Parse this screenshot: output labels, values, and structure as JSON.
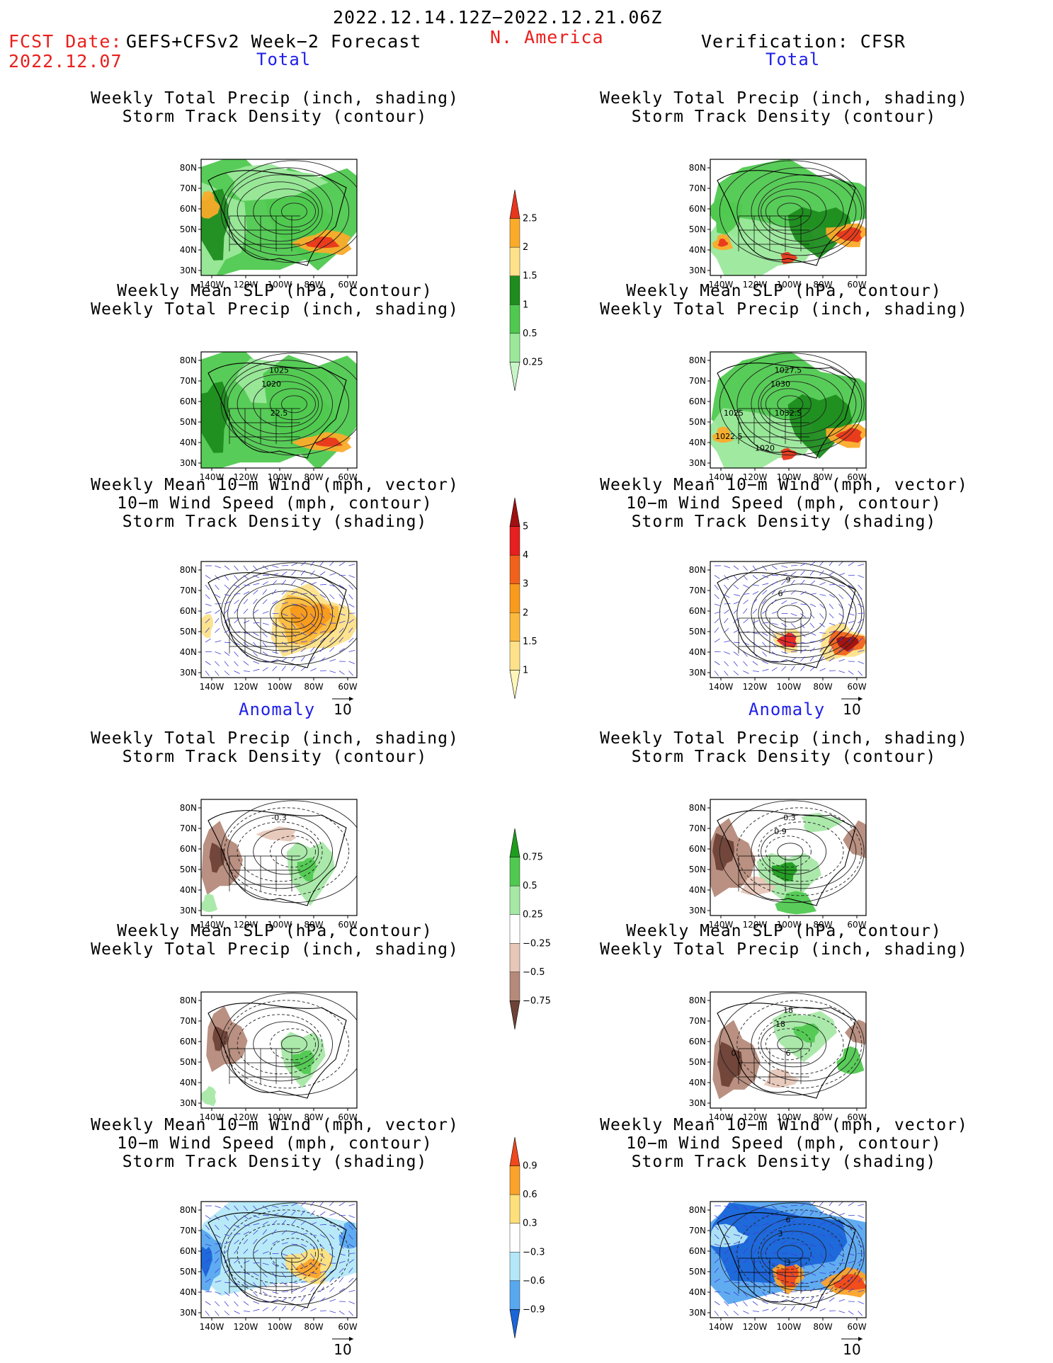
{
  "header": {
    "date_range": "2022.12.14.12Z−2022.12.21.06Z",
    "fcst_label": "FCST Date:",
    "fcst_date": "2022.12.07",
    "model": "GEFS+CFSv2 Week−2 Forecast",
    "region": "N. America",
    "verification": "Verification: CFSR"
  },
  "sections": {
    "total": "Total",
    "anomaly": "Anomaly"
  },
  "titles": {
    "precip_track": [
      "Weekly Total Precip (inch, shading)",
      "Storm Track Density (contour)"
    ],
    "slp_precip": [
      "Weekly Mean SLP (hPa, contour)",
      "Weekly Total Precip (inch, shading)"
    ],
    "wind_track": [
      "Weekly Mean 10−m Wind (mph, vector)",
      "10−m Wind Speed (mph, contour)",
      "Storm Track Density (shading)"
    ]
  },
  "axes": {
    "lat_labels": [
      "80N",
      "70N",
      "60N",
      "50N",
      "40N",
      "30N"
    ],
    "lon_labels": [
      "140W",
      "120W",
      "100W",
      "80W",
      "60W"
    ]
  },
  "vector_ref": "10",
  "contour_labels": {
    "fcst_total_slp": [
      "1025",
      "1020",
      "22.5"
    ],
    "cfsr_total_slp": [
      "1027.5",
      "1030",
      "1032.5",
      "1025",
      "1022.5",
      "1020"
    ],
    "cfsr_total_wind": [
      "9",
      "6"
    ],
    "fcst_anom_precip": [
      "-0.3"
    ],
    "cfsr_anom_precip": [
      "-0.3",
      "0.9"
    ],
    "cfsr_anom_slp": [
      "18",
      "18",
      "6",
      "0"
    ],
    "cfsr_anom_wind": [
      "6",
      "3",
      "3"
    ]
  },
  "colorbars": {
    "total_precip": {
      "labels": [
        "2.5",
        "2",
        "1.5",
        "1",
        "0.5",
        "0.25"
      ],
      "colors": [
        "#e8361c",
        "#fbab2a",
        "#fde28a",
        "#1e8c1e",
        "#4fc94f",
        "#9be89b",
        "#c8f5c8"
      ]
    },
    "total_track": {
      "labels": [
        "5",
        "4",
        "3",
        "2",
        "1.5",
        "1"
      ],
      "colors": [
        "#a01010",
        "#e62020",
        "#f0621c",
        "#f89a1c",
        "#fbba3e",
        "#fde28a",
        "#fdf6b8"
      ]
    },
    "anom_precip": {
      "labels": [
        "0.75",
        "0.5",
        "0.25",
        "−0.25",
        "−0.5",
        "−0.75"
      ],
      "colors": [
        "#1e9c1e",
        "#50c950",
        "#a6e8a6",
        "#ffffff",
        "#e7c7b8",
        "#b58a7a",
        "#6e4236"
      ]
    },
    "anom_track": {
      "labels": [
        "0.9",
        "0.6",
        "0.3",
        "−0.3",
        "−0.6",
        "−0.9"
      ],
      "colors": [
        "#f0481c",
        "#fba22a",
        "#fde07a",
        "#ffffff",
        "#b4e8f8",
        "#58a8f0",
        "#1a66d8"
      ]
    }
  }
}
